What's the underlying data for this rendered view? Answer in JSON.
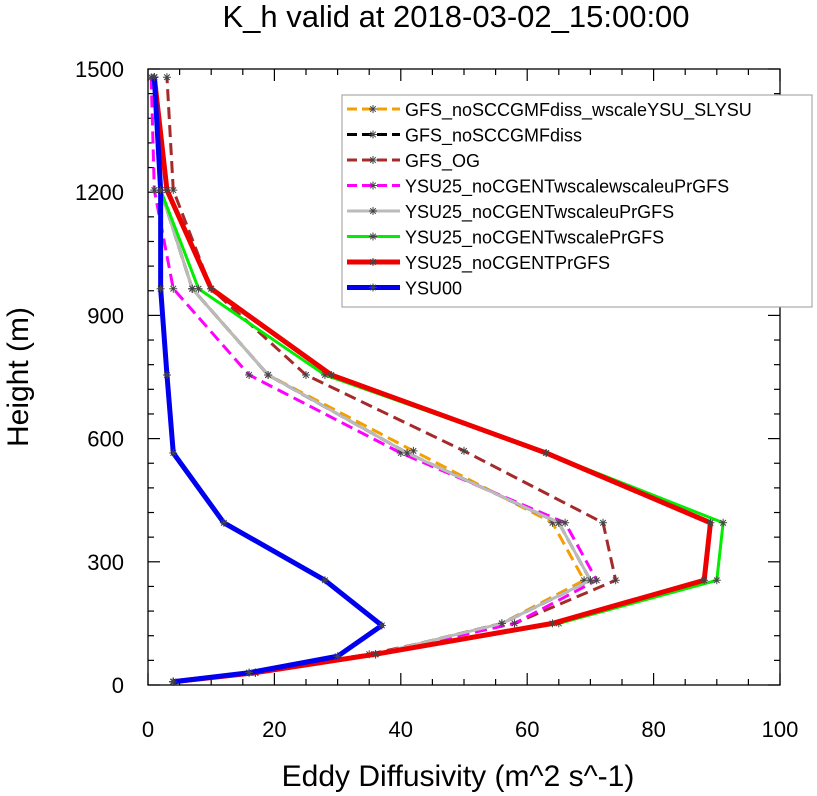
{
  "chart_data": {
    "type": "line",
    "title": "K_h valid at 2018-03-02_15:00:00",
    "xlabel": "Eddy Diffusivity (m^2 s^-1)",
    "ylabel": "Height (m)",
    "xlim": [
      0,
      100
    ],
    "ylim": [
      0,
      1500
    ],
    "xticks": [
      "0",
      "20",
      "40",
      "60",
      "80",
      "100"
    ],
    "yticks": [
      "0",
      "300",
      "600",
      "900",
      "1200",
      "1500"
    ],
    "legend_position": "top-right",
    "grid": false,
    "series": [
      {
        "name": "GFS_noSCCGMFdiss_wscaleYSU_SLYSU",
        "color": "#f5a000",
        "dash": "dash",
        "points": [
          [
            4,
            8
          ],
          [
            17,
            30
          ],
          [
            36,
            75
          ],
          [
            56,
            150
          ],
          [
            69,
            255
          ],
          [
            64,
            395
          ],
          [
            42,
            570
          ],
          [
            19,
            755
          ],
          [
            7,
            965
          ],
          [
            2,
            1205
          ],
          [
            1,
            1480
          ]
        ]
      },
      {
        "name": "GFS_noSCCGMFdiss",
        "color": "#000000",
        "dash": "dash",
        "points": [
          [
            4,
            8
          ],
          [
            17,
            30
          ],
          [
            36,
            75
          ],
          [
            56,
            150
          ],
          [
            70,
            255
          ],
          [
            65,
            395
          ],
          [
            41,
            565
          ],
          [
            19,
            755
          ],
          [
            7,
            965
          ],
          [
            2,
            1205
          ],
          [
            1,
            1480
          ]
        ]
      },
      {
        "name": "GFS_OG",
        "color": "#a52a2a",
        "dash": "dash",
        "points": [
          [
            4,
            8
          ],
          [
            16,
            30
          ],
          [
            35,
            75
          ],
          [
            58,
            150
          ],
          [
            74,
            255
          ],
          [
            72,
            395
          ],
          [
            50,
            570
          ],
          [
            25,
            755
          ],
          [
            10,
            965
          ],
          [
            4,
            1205
          ],
          [
            3,
            1480
          ]
        ]
      },
      {
        "name": "YSU25_noCGENTwscalewscaleuPrGFS",
        "color": "#ff00ff",
        "dash": "dash",
        "points": [
          [
            4,
            8
          ],
          [
            17,
            30
          ],
          [
            36,
            75
          ],
          [
            58,
            150
          ],
          [
            71,
            255
          ],
          [
            66,
            395
          ],
          [
            40,
            565
          ],
          [
            16,
            755
          ],
          [
            4,
            965
          ],
          [
            1,
            1205
          ],
          [
            0.5,
            1480
          ]
        ]
      },
      {
        "name": "YSU25_noCGENTwscaleuPrGFS",
        "color": "#bbbbbb",
        "dash": "solid",
        "points": [
          [
            4,
            8
          ],
          [
            17,
            30
          ],
          [
            36,
            75
          ],
          [
            56,
            150
          ],
          [
            70,
            255
          ],
          [
            65,
            395
          ],
          [
            41,
            565
          ],
          [
            19,
            755
          ],
          [
            7,
            965
          ],
          [
            2,
            1205
          ],
          [
            1,
            1480
          ]
        ]
      },
      {
        "name": "YSU25_noCGENTwscalePrGFS",
        "color": "#00ee00",
        "dash": "solid",
        "points": [
          [
            4,
            8
          ],
          [
            17,
            30
          ],
          [
            36,
            75
          ],
          [
            65,
            150
          ],
          [
            90,
            255
          ],
          [
            91,
            395
          ],
          [
            63,
            565
          ],
          [
            28,
            755
          ],
          [
            8,
            965
          ],
          [
            2,
            1205
          ],
          [
            1,
            1480
          ]
        ]
      },
      {
        "name": "YSU25_noCGENTPrGFS",
        "color": "#ee0000",
        "dash": "solid",
        "points": [
          [
            4,
            8
          ],
          [
            17,
            30
          ],
          [
            36,
            75
          ],
          [
            64,
            150
          ],
          [
            88,
            255
          ],
          [
            89,
            395
          ],
          [
            63,
            565
          ],
          [
            29,
            755
          ],
          [
            10,
            965
          ],
          [
            3,
            1205
          ],
          [
            1,
            1480
          ]
        ]
      },
      {
        "name": "YSU00",
        "color": "#0000ee",
        "dash": "solid",
        "points": [
          [
            4,
            8
          ],
          [
            16,
            30
          ],
          [
            30,
            70
          ],
          [
            37,
            145
          ],
          [
            28,
            255
          ],
          [
            12,
            395
          ],
          [
            4,
            565
          ],
          [
            3,
            755
          ],
          [
            2,
            965
          ],
          [
            2,
            1205
          ],
          [
            1,
            1480
          ]
        ]
      }
    ]
  }
}
